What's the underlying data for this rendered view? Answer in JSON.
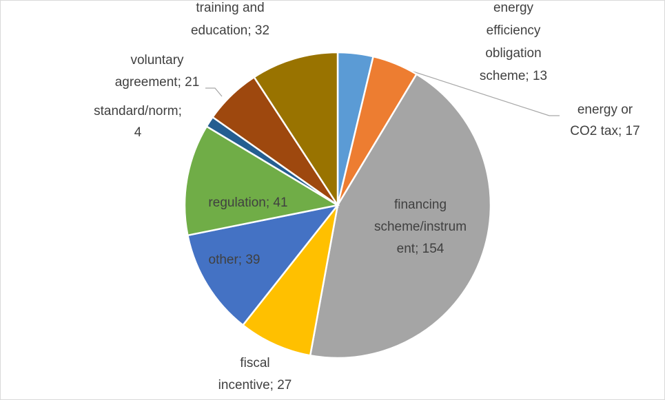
{
  "chart_data": {
    "type": "pie",
    "categories": [
      "energy efficiency obligation scheme",
      "energy or CO2 tax",
      "financing scheme/instrument",
      "fiscal incentive",
      "other",
      "regulation",
      "standard/norm",
      "voluntary agreement",
      "training and education"
    ],
    "values": [
      13,
      17,
      154,
      27,
      39,
      41,
      4,
      21,
      32
    ],
    "value_labels": [
      "energy efficiency obligation scheme; 13",
      "energy or CO2 tax; 17",
      "financing scheme/instrument; 154",
      "fiscal incentive; 27",
      "other; 39",
      "regulation; 41",
      "standard/norm; 4",
      "voluntary agreement; 21",
      "training and education; 32"
    ],
    "colors": [
      "#5b9bd5",
      "#ed7d31",
      "#a5a5a5",
      "#ffc000",
      "#4472c4",
      "#70ad47",
      "#255e91",
      "#9e480e",
      "#997300"
    ]
  }
}
